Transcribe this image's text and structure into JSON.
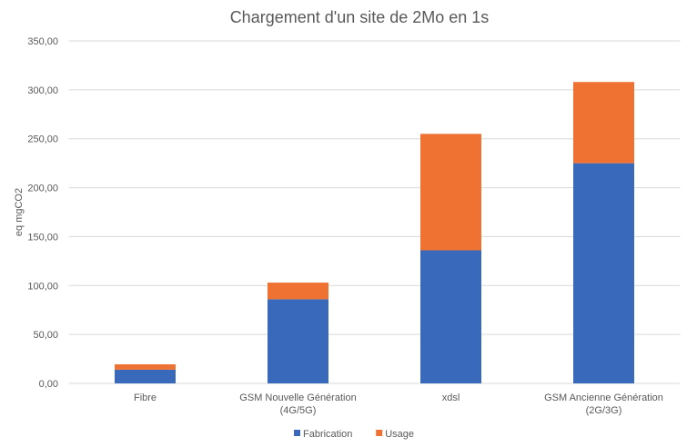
{
  "chart_data": {
    "type": "bar",
    "stacked": true,
    "title": "Chargement d'un site de 2Mo en 1s",
    "xlabel": "",
    "ylabel": "eq mgCO2",
    "ylim": [
      0,
      350
    ],
    "yticks": [
      "0,00",
      "50,00",
      "100,00",
      "150,00",
      "200,00",
      "250,00",
      "300,00",
      "350,00"
    ],
    "grid": true,
    "legend_position": "bottom",
    "categories": [
      [
        "Fibre"
      ],
      [
        "GSM Nouvelle Génération",
        "(4G/5G)"
      ],
      [
        "xdsl"
      ],
      [
        "GSM Ancienne Génération",
        "(2G/3G)"
      ]
    ],
    "series": [
      {
        "name": "Fabrication",
        "color": "#3869BA",
        "values": [
          14,
          86,
          136,
          225
        ]
      },
      {
        "name": "Usage",
        "color": "#F07233",
        "values": [
          5.5,
          17,
          119,
          83
        ]
      }
    ]
  }
}
